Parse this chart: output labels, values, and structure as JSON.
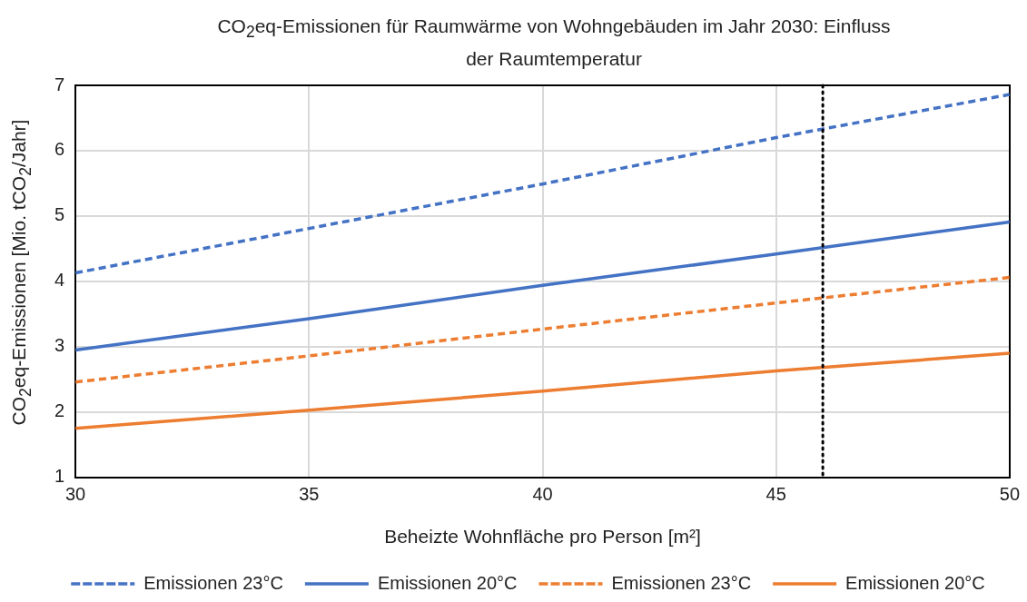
{
  "chart_data": {
    "type": "line",
    "title": "CO$_{2}$eq-Emissionen für Raumwärme von Wohngebäuden im Jahr 2030: Einfluss der Raumtemperatur",
    "xlabel": "Beheizte Wohnfläche pro Person [m²]",
    "ylabel": "CO$_{2}$eq-Emissionen [Mio. tCO$_{2}$/Jahr]",
    "x": [
      30,
      35,
      40,
      45,
      50
    ],
    "series": [
      {
        "name": "Emissionen 23°C",
        "color": "#4472c4",
        "line_style": "dashed",
        "values": [
          4.13,
          4.81,
          5.49,
          6.2,
          6.86
        ]
      },
      {
        "name": "Emissionen 20°C",
        "color": "#4472c4",
        "line_style": "solid",
        "values": [
          2.95,
          3.43,
          3.94,
          4.42,
          4.91
        ]
      },
      {
        "name": "Emissionen 23°C",
        "color": "#ed7d31",
        "line_style": "dashed",
        "values": [
          2.46,
          2.86,
          3.27,
          3.67,
          4.06
        ]
      },
      {
        "name": "Emissionen 20°C",
        "color": "#ed7d31",
        "line_style": "solid",
        "values": [
          1.75,
          2.03,
          2.32,
          2.63,
          2.9
        ]
      }
    ],
    "xlim": [
      30,
      50
    ],
    "xticks": [
      30,
      35,
      40,
      45,
      50
    ],
    "ylim": [
      1,
      7
    ],
    "yticks": [
      1,
      2,
      3,
      4,
      5,
      6,
      7
    ],
    "ref_lines": [
      {
        "axis": "x",
        "value": 46,
        "color": "#000000",
        "line_style": "dotted"
      }
    ],
    "grid": true,
    "legend": "bottom",
    "marker": "none"
  }
}
